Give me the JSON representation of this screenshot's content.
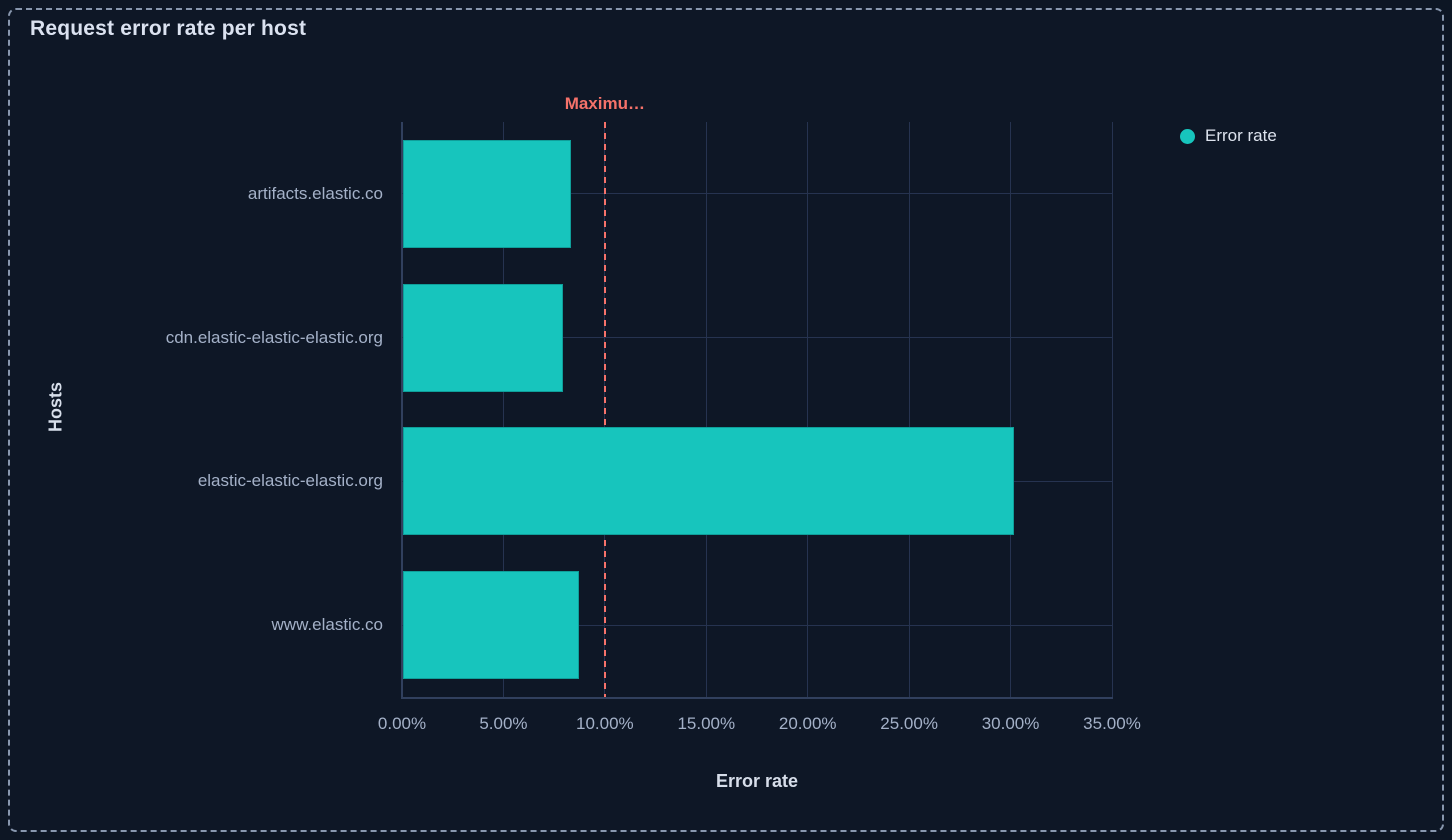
{
  "panel": {
    "title": "Request error rate per host"
  },
  "legend": {
    "items": [
      {
        "label": "Error rate",
        "color": "#17c5bd"
      }
    ]
  },
  "chart_data": {
    "type": "bar",
    "orientation": "horizontal",
    "title": "Request error rate per host",
    "xlabel": "Error rate",
    "ylabel": "Hosts",
    "categories": [
      "artifacts.elastic.co",
      "cdn.elastic-elastic-elastic.org",
      "elastic-elastic-elastic.org",
      "www.elastic.co"
    ],
    "series": [
      {
        "name": "Error rate",
        "color": "#17c5bd",
        "values": [
          8.3,
          7.9,
          30.1,
          8.7
        ]
      }
    ],
    "value_unit": "%",
    "xlim": [
      0,
      35
    ],
    "x_ticks": [
      {
        "value": 0,
        "label": "0.00%"
      },
      {
        "value": 5,
        "label": "5.00%"
      },
      {
        "value": 10,
        "label": "10.00%"
      },
      {
        "value": 15,
        "label": "15.00%"
      },
      {
        "value": 20,
        "label": "20.00%"
      },
      {
        "value": 25,
        "label": "25.00%"
      },
      {
        "value": 30,
        "label": "30.00%"
      },
      {
        "value": 35,
        "label": "35.00%"
      }
    ],
    "grid": true,
    "legend_position": "top-right",
    "annotations": [
      {
        "type": "vertical-line",
        "label": "Maximu…",
        "value": 10,
        "color": "#f6726a",
        "line_style": "dashed"
      }
    ]
  },
  "colors": {
    "background": "#0d1624",
    "panel_border": "#8897ae",
    "bar": "#17c5bd",
    "annotation": "#f6726a",
    "title_text": "#dbe2f0",
    "axis_text": "#a4b1c8",
    "gridline": "#263350",
    "axis_line": "#31405e"
  }
}
